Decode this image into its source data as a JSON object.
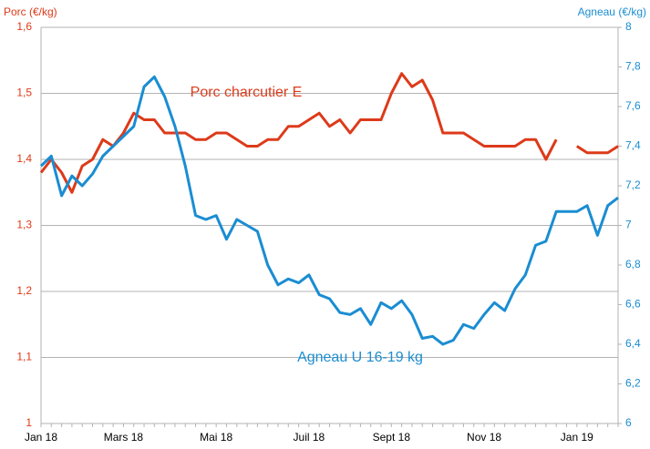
{
  "chart_data": {
    "type": "line",
    "y_label": "Porc (€/kg)",
    "y2_label": "Agneau (€/kg)",
    "categories": [
      "Jan 18",
      null,
      null,
      null,
      null,
      null,
      null,
      null,
      "Mars 18",
      null,
      null,
      null,
      null,
      null,
      null,
      null,
      null,
      "Mai 18",
      null,
      null,
      null,
      null,
      null,
      null,
      null,
      null,
      "Juil 18",
      null,
      null,
      null,
      null,
      null,
      null,
      null,
      "Sept 18",
      null,
      null,
      null,
      null,
      null,
      null,
      null,
      null,
      "Nov 18",
      null,
      null,
      null,
      null,
      null,
      null,
      null,
      null,
      "Jan 19",
      null,
      null,
      null,
      null
    ],
    "series": [
      {
        "name": "Porc charcutier E",
        "color": "#dd3a1a",
        "axis": "y",
        "values": [
          1.38,
          1.4,
          1.38,
          1.35,
          1.39,
          1.4,
          1.43,
          1.42,
          1.44,
          1.47,
          1.46,
          1.46,
          1.44,
          1.44,
          1.44,
          1.43,
          1.43,
          1.44,
          1.44,
          1.43,
          1.42,
          1.42,
          1.43,
          1.43,
          1.45,
          1.45,
          1.46,
          1.47,
          1.45,
          1.46,
          1.44,
          1.46,
          1.46,
          1.46,
          1.5,
          1.53,
          1.51,
          1.52,
          1.49,
          1.44,
          1.44,
          1.44,
          1.43,
          1.42,
          1.42,
          1.42,
          1.42,
          1.43,
          1.43,
          1.4,
          1.43,
          null,
          1.42,
          1.41,
          1.41,
          1.41,
          1.42
        ]
      },
      {
        "name": "Agneau U 16-19 kg",
        "color": "#1a8dd2",
        "axis": "y2",
        "values": [
          7.3,
          7.35,
          7.15,
          7.25,
          7.2,
          7.26,
          7.35,
          7.4,
          7.45,
          7.5,
          7.7,
          7.75,
          7.65,
          7.5,
          7.3,
          7.05,
          7.03,
          7.05,
          6.93,
          7.03,
          7.0,
          6.97,
          6.8,
          6.7,
          6.73,
          6.71,
          6.75,
          6.65,
          6.63,
          6.56,
          6.55,
          6.58,
          6.5,
          6.61,
          6.58,
          6.62,
          6.55,
          6.43,
          6.44,
          6.4,
          6.42,
          6.5,
          6.48,
          6.55,
          6.61,
          6.57,
          6.68,
          6.75,
          6.9,
          6.92,
          7.07,
          7.07,
          7.07,
          7.1,
          6.95,
          7.1,
          7.14
        ]
      }
    ],
    "ylim": [
      1,
      1.6
    ],
    "yticks": [
      1,
      {
        "value": 1.1,
        "label": "1,1"
      },
      {
        "value": 1.2,
        "label": "1,2"
      },
      {
        "value": 1.3,
        "label": "1,3"
      },
      {
        "value": 1.4,
        "label": "1,4"
      },
      {
        "value": 1.5,
        "label": "1,5"
      },
      {
        "value": 1.6,
        "label": "1,6"
      }
    ],
    "y2lim": [
      6,
      8
    ],
    "y2ticks": [
      6,
      {
        "value": 6.2,
        "label": "6,2"
      },
      {
        "value": 6.4,
        "label": "6,4"
      },
      {
        "value": 6.6,
        "label": "6,6"
      },
      {
        "value": 6.8,
        "label": "6,8"
      },
      7,
      {
        "value": 7.2,
        "label": "7,2"
      },
      {
        "value": 7.4,
        "label": "7,4"
      },
      {
        "value": 7.6,
        "label": "7,6"
      },
      {
        "value": 7.8,
        "label": "7,8"
      },
      8
    ],
    "grid": true
  }
}
